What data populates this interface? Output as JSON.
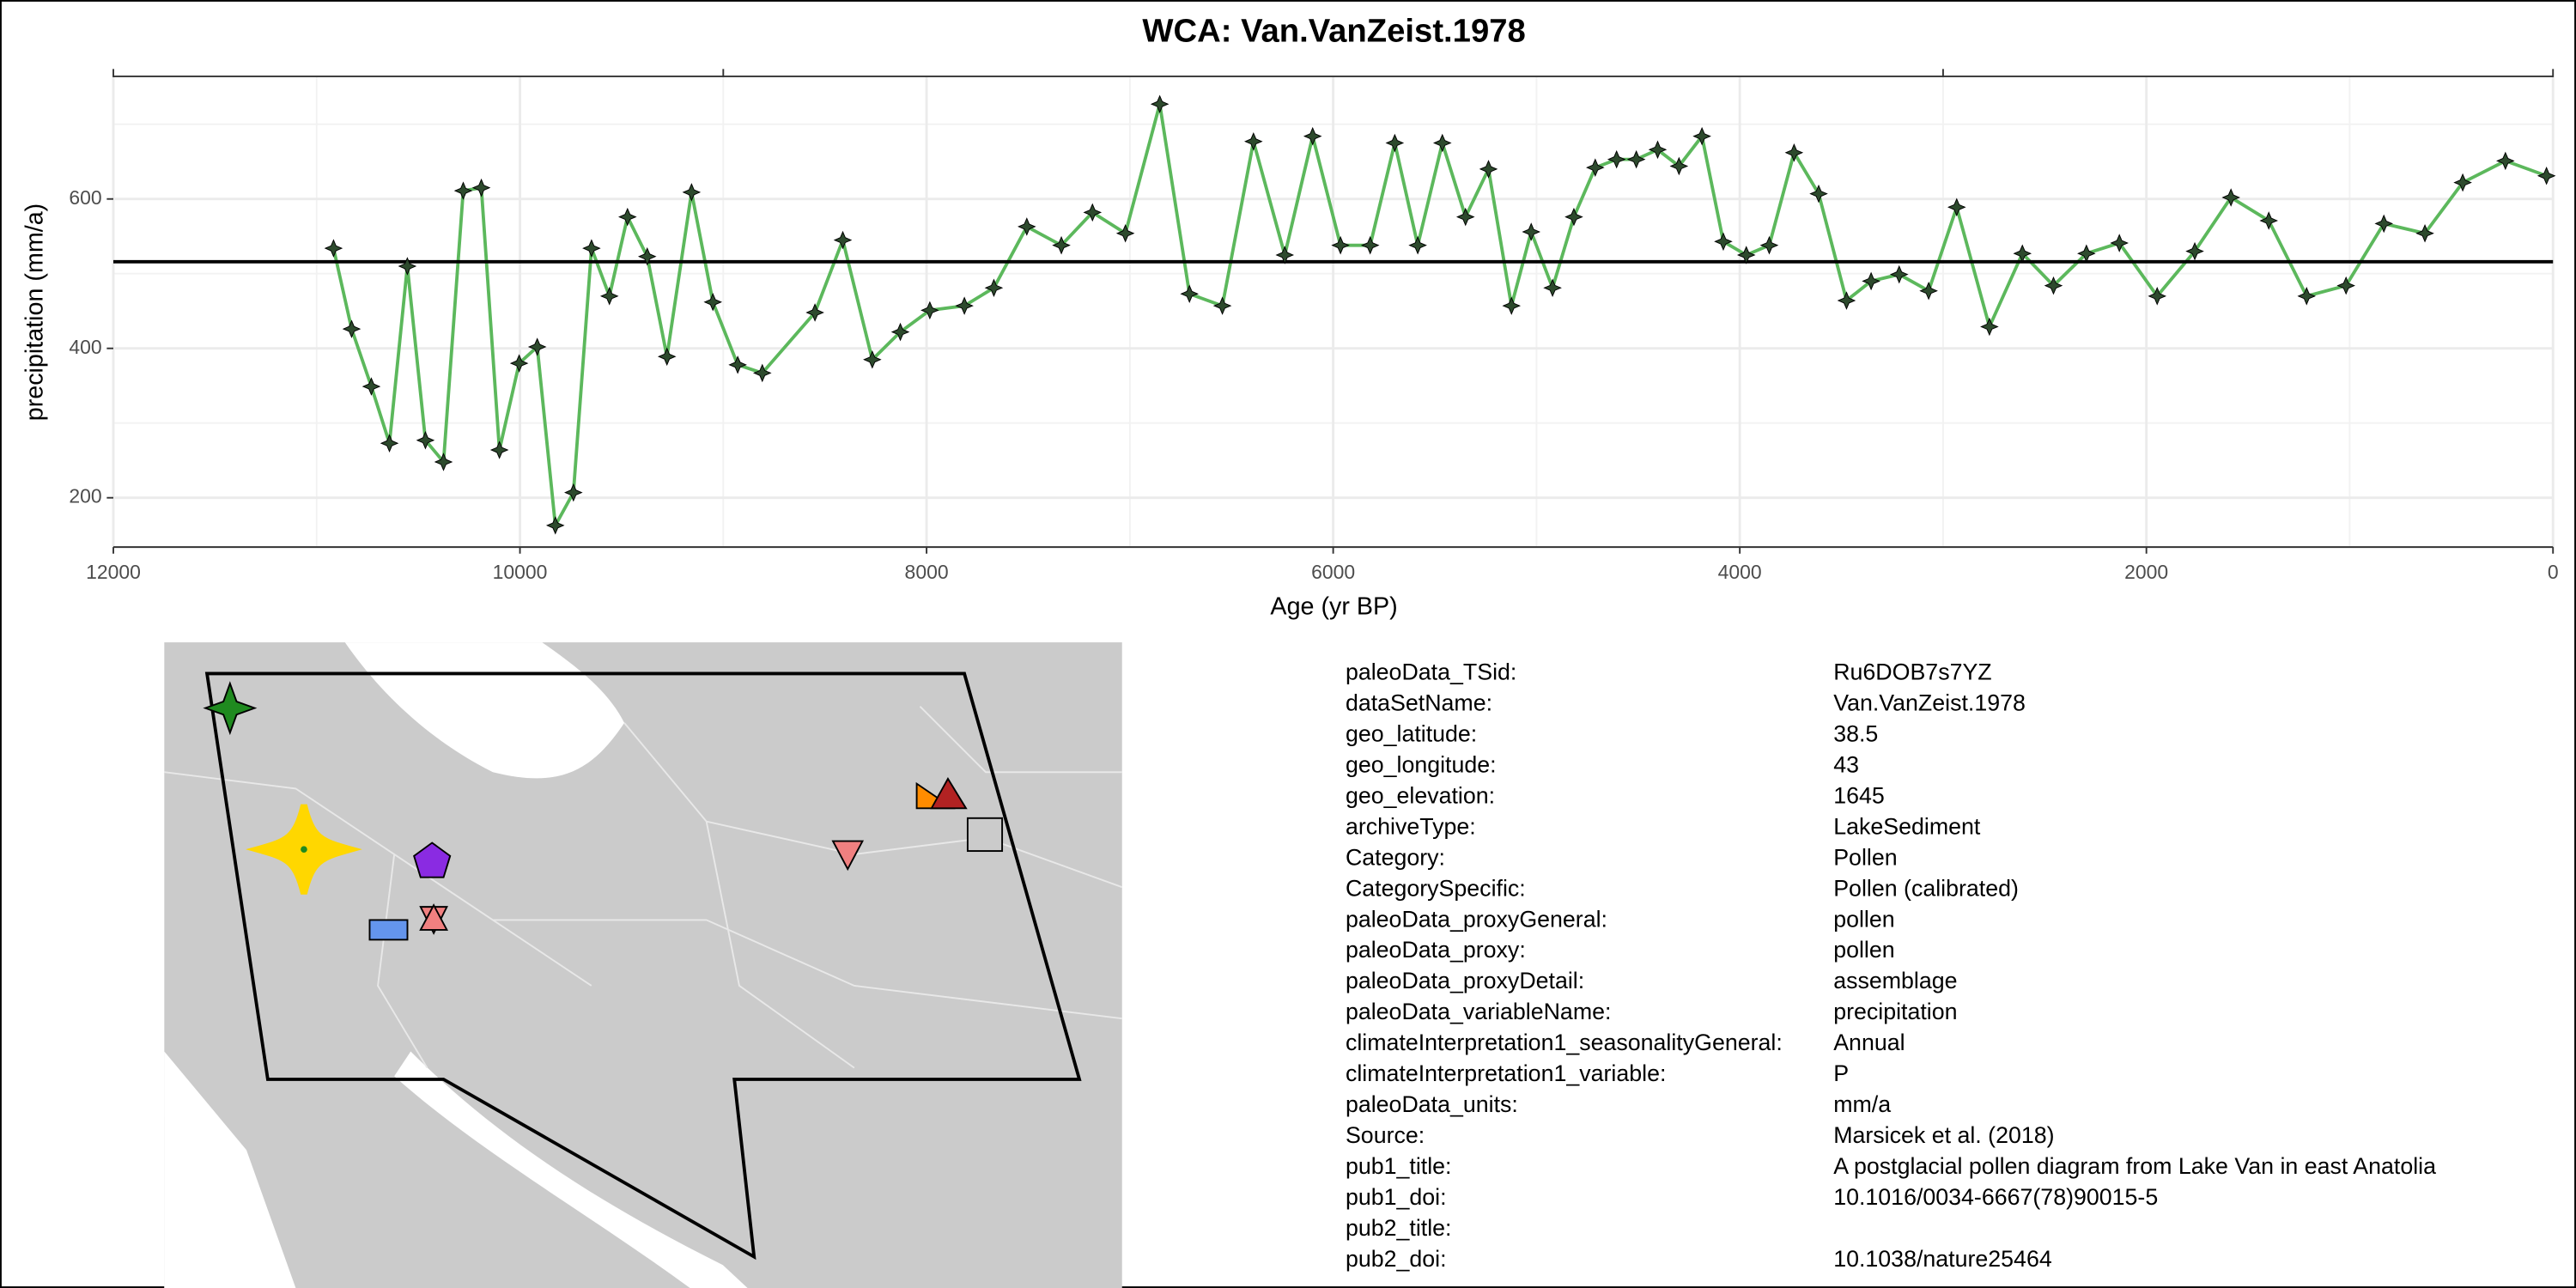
{
  "chart_data": {
    "type": "line",
    "title": "WCA: Van.VanZeist.1978",
    "x_label": "Age (yr BP)",
    "y_label": "precipitation (mm/a)",
    "x": [
      10917,
      10828,
      10731,
      10642,
      10554,
      10465,
      10376,
      10279,
      10190,
      10101,
      10004,
      9915,
      9826,
      9737,
      9648,
      9560,
      9471,
      9374,
      9277,
      9156,
      9051,
      8929,
      8808,
      8549,
      8412,
      8267,
      8129,
      7984,
      7814,
      7669,
      7507,
      7337,
      7184,
      7022,
      6853,
      6707,
      6545,
      6392,
      6238,
      6101,
      5964,
      5818,
      5697,
      5584,
      5463,
      5349,
      5236,
      5123,
      5026,
      4921,
      4816,
      4711,
      4606,
      4509,
      4404,
      4299,
      4186,
      4081,
      3968,
      3855,
      3733,
      3612,
      3475,
      3354,
      3216,
      3071,
      2933,
      2772,
      2610,
      2457,
      2295,
      2133,
      1947,
      1762,
      1584,
      1398,
      1212,
      1018,
      832,
      630,
      444,
      234,
      32
    ],
    "values": [
      534,
      426,
      349,
      273,
      510,
      277,
      248,
      611,
      615,
      264,
      380,
      402,
      163,
      207,
      534,
      470,
      576,
      523,
      389,
      609,
      462,
      378,
      367,
      448,
      545,
      385,
      422,
      451,
      457,
      481,
      563,
      538,
      582,
      554,
      727,
      473,
      457,
      677,
      525,
      684,
      538,
      538,
      675,
      538,
      675,
      576,
      640,
      457,
      556,
      481,
      576,
      642,
      653,
      653,
      666,
      644,
      684,
      543,
      525,
      538,
      662,
      607,
      464,
      490,
      499,
      477,
      589,
      429,
      527,
      484,
      527,
      541,
      470,
      530,
      602,
      571,
      470,
      484,
      567,
      554,
      622,
      651,
      631
    ],
    "color": "#5cb85c",
    "marker_color": "#2d4a2d",
    "mean_line": 516,
    "xlim": [
      12000,
      0
    ],
    "ylim": [
      134,
      763
    ],
    "xticks": [
      12000,
      10000,
      8000,
      6000,
      4000,
      2000,
      0
    ],
    "yticks": [
      200,
      400,
      600
    ],
    "x_minor_grid": [
      11000,
      9000,
      7000,
      5000,
      3000,
      1000
    ],
    "y_minor_grid": [
      300,
      500,
      700
    ],
    "top_xticks": [
      12000,
      9000,
      3000,
      0
    ],
    "grid": true
  },
  "metadata": {
    "rows": [
      [
        "paleoData_TSid:",
        "Ru6DOB7s7YZ"
      ],
      [
        "dataSetName:",
        "Van.VanZeist.1978"
      ],
      [
        "geo_latitude:",
        "38.5"
      ],
      [
        "geo_longitude:",
        "43"
      ],
      [
        "geo_elevation:",
        "1645"
      ],
      [
        "archiveType:",
        "LakeSediment"
      ],
      [
        "Category:",
        "Pollen"
      ],
      [
        "CategorySpecific:",
        "Pollen (calibrated)"
      ],
      [
        "paleoData_proxyGeneral:",
        "pollen"
      ],
      [
        "paleoData_proxy:",
        "pollen"
      ],
      [
        "paleoData_proxyDetail:",
        "assemblage"
      ],
      [
        "paleoData_variableName:",
        "precipitation"
      ],
      [
        "climateInterpretation1_seasonalityGeneral:",
        "Annual"
      ],
      [
        "climateInterpretation1_variable:",
        "P"
      ],
      [
        "paleoData_units:",
        "mm/a"
      ],
      [
        "Source:",
        "Marsicek et al. (2018)"
      ],
      [
        "pub1_title:",
        "A postglacial pollen diagram from Lake Van in east Anatolia"
      ],
      [
        "pub1_doi:",
        "10.1016/0034-6667(78)90015-5"
      ],
      [
        "pub2_title:"
      ],
      [
        "pub2_doi:",
        "10.1038/nature25464"
      ]
    ]
  }
}
